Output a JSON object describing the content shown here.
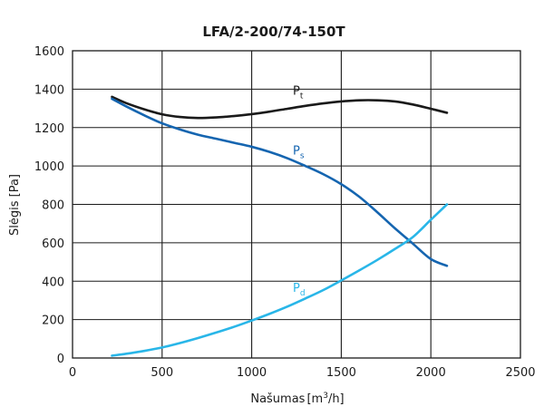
{
  "chart_data": {
    "type": "line",
    "title": "LFA/2-200/74-150T",
    "xlabel": {
      "main": "Našumas",
      "unit_open": "[m",
      "unit_sup": "3",
      "unit_close": "/h]"
    },
    "ylabel": "Slėgis [Pa]",
    "xlim": [
      0,
      2500
    ],
    "ylim": [
      0,
      1600
    ],
    "x_ticks": [
      0,
      500,
      1000,
      1500,
      2000,
      2500
    ],
    "y_ticks": [
      0,
      200,
      400,
      600,
      800,
      1000,
      1200,
      1400,
      1600
    ],
    "grid": true,
    "series": [
      {
        "name": "Pt",
        "label_main": "P",
        "label_sub": "t",
        "color": "#1a1a1a",
        "label_at": [
          1230,
          1370
        ],
        "x": [
          220,
          300,
          400,
          500,
          600,
          700,
          800,
          900,
          1000,
          1100,
          1200,
          1300,
          1400,
          1500,
          1600,
          1700,
          1800,
          1900,
          2000,
          2090
        ],
        "y": [
          1360,
          1327,
          1295,
          1269,
          1255,
          1250,
          1253,
          1260,
          1270,
          1283,
          1298,
          1313,
          1326,
          1336,
          1342,
          1342,
          1336,
          1320,
          1298,
          1277
        ]
      },
      {
        "name": "Ps",
        "label_main": "P",
        "label_sub": "s",
        "color": "#1565b0",
        "label_at": [
          1230,
          1060
        ],
        "x": [
          220,
          300,
          400,
          500,
          600,
          700,
          800,
          900,
          1000,
          1100,
          1200,
          1300,
          1400,
          1500,
          1600,
          1700,
          1800,
          1900,
          2000,
          2090
        ],
        "y": [
          1350,
          1310,
          1264,
          1222,
          1190,
          1163,
          1142,
          1121,
          1100,
          1073,
          1040,
          1000,
          957,
          905,
          840,
          760,
          675,
          595,
          515,
          480
        ]
      },
      {
        "name": "Pd",
        "label_main": "P",
        "label_sub": "d",
        "color": "#29b6e8",
        "label_at": [
          1230,
          345
        ],
        "x": [
          220,
          300,
          400,
          500,
          600,
          700,
          800,
          900,
          1000,
          1100,
          1200,
          1300,
          1400,
          1500,
          1600,
          1700,
          1800,
          1900,
          2000,
          2090
        ],
        "y": [
          12,
          22,
          37,
          55,
          78,
          104,
          132,
          162,
          195,
          230,
          268,
          310,
          354,
          404,
          456,
          510,
          568,
          630,
          720,
          800
        ]
      }
    ]
  }
}
